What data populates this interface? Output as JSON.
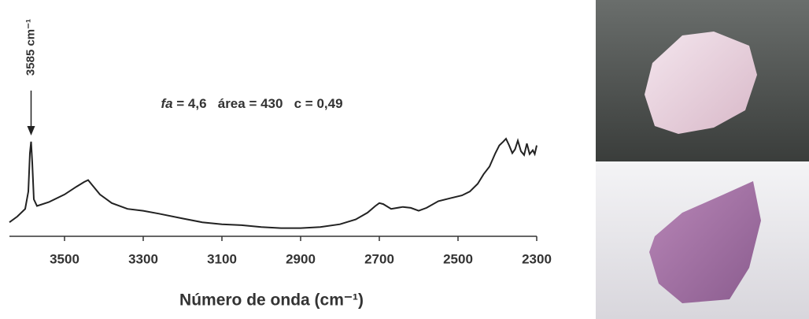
{
  "chart_data": {
    "type": "line",
    "x_label": "Número de onda (cm⁻¹)",
    "peak_label": {
      "text": "3585 cm⁻¹",
      "x": 3585
    },
    "annotation": {
      "italic": "fa",
      "text": " = 4,6   área = 430   c = 0,49"
    },
    "xlim": [
      3640,
      2300
    ],
    "xticks": [
      3500,
      3300,
      3100,
      2900,
      2700,
      2500,
      2300
    ],
    "ylim": [
      0,
      100
    ],
    "color": "#222222",
    "x": [
      3640,
      3620,
      3600,
      3592,
      3588,
      3585,
      3582,
      3578,
      3570,
      3540,
      3500,
      3470,
      3450,
      3440,
      3430,
      3410,
      3380,
      3340,
      3300,
      3260,
      3200,
      3150,
      3100,
      3050,
      3000,
      2950,
      2900,
      2850,
      2800,
      2760,
      2730,
      2710,
      2700,
      2690,
      2670,
      2640,
      2620,
      2600,
      2580,
      2550,
      2520,
      2490,
      2470,
      2450,
      2435,
      2420,
      2405,
      2395,
      2385,
      2378,
      2370,
      2362,
      2355,
      2348,
      2340,
      2332,
      2325,
      2318,
      2310,
      2305,
      2300
    ],
    "y": [
      8,
      14,
      22,
      40,
      80,
      92,
      70,
      32,
      25,
      29,
      37,
      45,
      50,
      52,
      47,
      37,
      28,
      22,
      20,
      17,
      12,
      8,
      6,
      5,
      3,
      2,
      2,
      3,
      6,
      11,
      18,
      25,
      28,
      27,
      22,
      24,
      23,
      20,
      23,
      30,
      33,
      36,
      40,
      48,
      58,
      66,
      80,
      88,
      92,
      95,
      88,
      80,
      84,
      93,
      82,
      78,
      90,
      79,
      83,
      79,
      88
    ]
  }
}
